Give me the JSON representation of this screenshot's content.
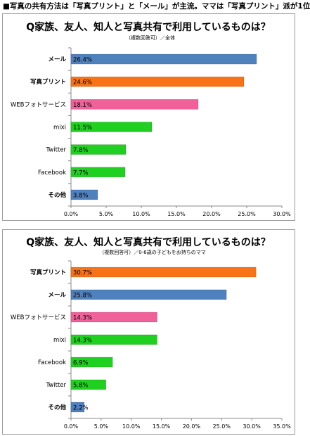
{
  "headline": "■写真の共有方法は「写真プリント」と「メール」が主流。ママは「写真プリント」派が1位",
  "chart_data": [
    {
      "type": "bar",
      "orientation": "horizontal",
      "title": "Q家族、友人、知人と写真共有で利用しているものは？",
      "subtitle": "（複数回答可）／全体",
      "categories": [
        "メール",
        "写真プリント",
        "WEBフォトサービス",
        "mixi",
        "Twitter",
        "Facebook",
        "その他"
      ],
      "values": [
        26.4,
        24.6,
        18.1,
        11.5,
        7.8,
        7.7,
        3.8
      ],
      "labels": [
        "26.4%",
        "24.6%",
        "18.1%",
        "11.5%",
        "7.8%",
        "7.7%",
        "3.8%"
      ],
      "colors": [
        "#4f81bd",
        "#f87217",
        "#f0619a",
        "#20d020",
        "#20d020",
        "#20d020",
        "#4f81bd"
      ],
      "bold_categories": [
        "メール",
        "写真プリント",
        "その他"
      ],
      "xlim": [
        0,
        30
      ],
      "xticks": [
        "0.0%",
        "5.0%",
        "10.0%",
        "15.0%",
        "20.0%",
        "25.0%",
        "30.0%"
      ]
    },
    {
      "type": "bar",
      "orientation": "horizontal",
      "title": "Q家族、友人、知人と写真共有で利用しているものは？",
      "subtitle": "（複数回答可）／0-6歳の子どもをお持ちのママ",
      "categories": [
        "写真プリント",
        "メール",
        "WEBフォトサービス",
        "mixi",
        "Facebook",
        "Twitter",
        "その他"
      ],
      "values": [
        30.7,
        25.8,
        14.3,
        14.3,
        6.9,
        5.8,
        2.2
      ],
      "labels": [
        "30.7%",
        "25.8%",
        "14.3%",
        "14.3%",
        "6.9%",
        "5.8%",
        "2.2%"
      ],
      "colors": [
        "#f87217",
        "#4f81bd",
        "#f0619a",
        "#20d020",
        "#20d020",
        "#20d020",
        "#4f81bd"
      ],
      "bold_categories": [
        "写真プリント",
        "メール",
        "その他"
      ],
      "xlim": [
        0,
        35
      ],
      "xticks": [
        "0.0%",
        "5.0%",
        "10.0%",
        "15.0%",
        "20.0%",
        "25.0%",
        "30.0%",
        "35.0%"
      ]
    }
  ]
}
